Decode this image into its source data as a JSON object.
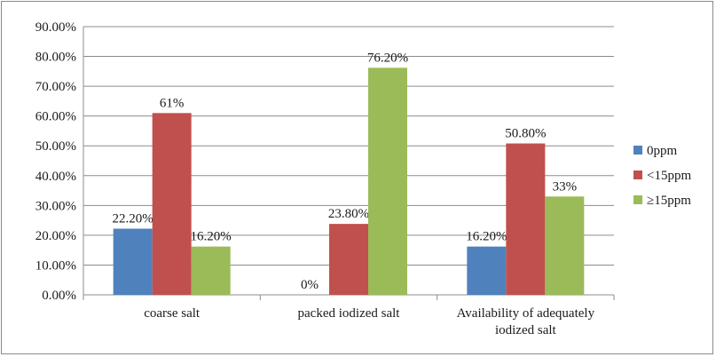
{
  "chart_data": {
    "type": "bar",
    "categories": [
      [
        "coarse salt"
      ],
      [
        "packed iodized salt"
      ],
      [
        "Availability of adequately",
        "iodized salt"
      ]
    ],
    "series": [
      {
        "name": "0ppm",
        "color": "#4f81bd",
        "values": [
          22.2,
          0,
          16.2
        ],
        "labels": [
          "22.20%",
          "0%",
          "16.20%"
        ]
      },
      {
        "name": "<15ppm",
        "color": "#c0504d",
        "values": [
          61,
          23.8,
          50.8
        ],
        "labels": [
          "61%",
          "23.80%",
          "50.80%"
        ]
      },
      {
        "name": "≥15ppm",
        "color": "#9bbb59",
        "values": [
          16.2,
          76.2,
          33
        ],
        "labels": [
          "16.20%",
          "76.20%",
          "33%"
        ]
      }
    ],
    "ylim": [
      0,
      90
    ],
    "yticks": [
      0,
      10,
      20,
      30,
      40,
      50,
      60,
      70,
      80,
      90
    ],
    "ytick_labels": [
      "0.00%",
      "10.00%",
      "20.00%",
      "30.00%",
      "40.00%",
      "50.00%",
      "60.00%",
      "70.00%",
      "80.00%",
      "90.00%"
    ],
    "grid": true,
    "legend_position": "right"
  }
}
